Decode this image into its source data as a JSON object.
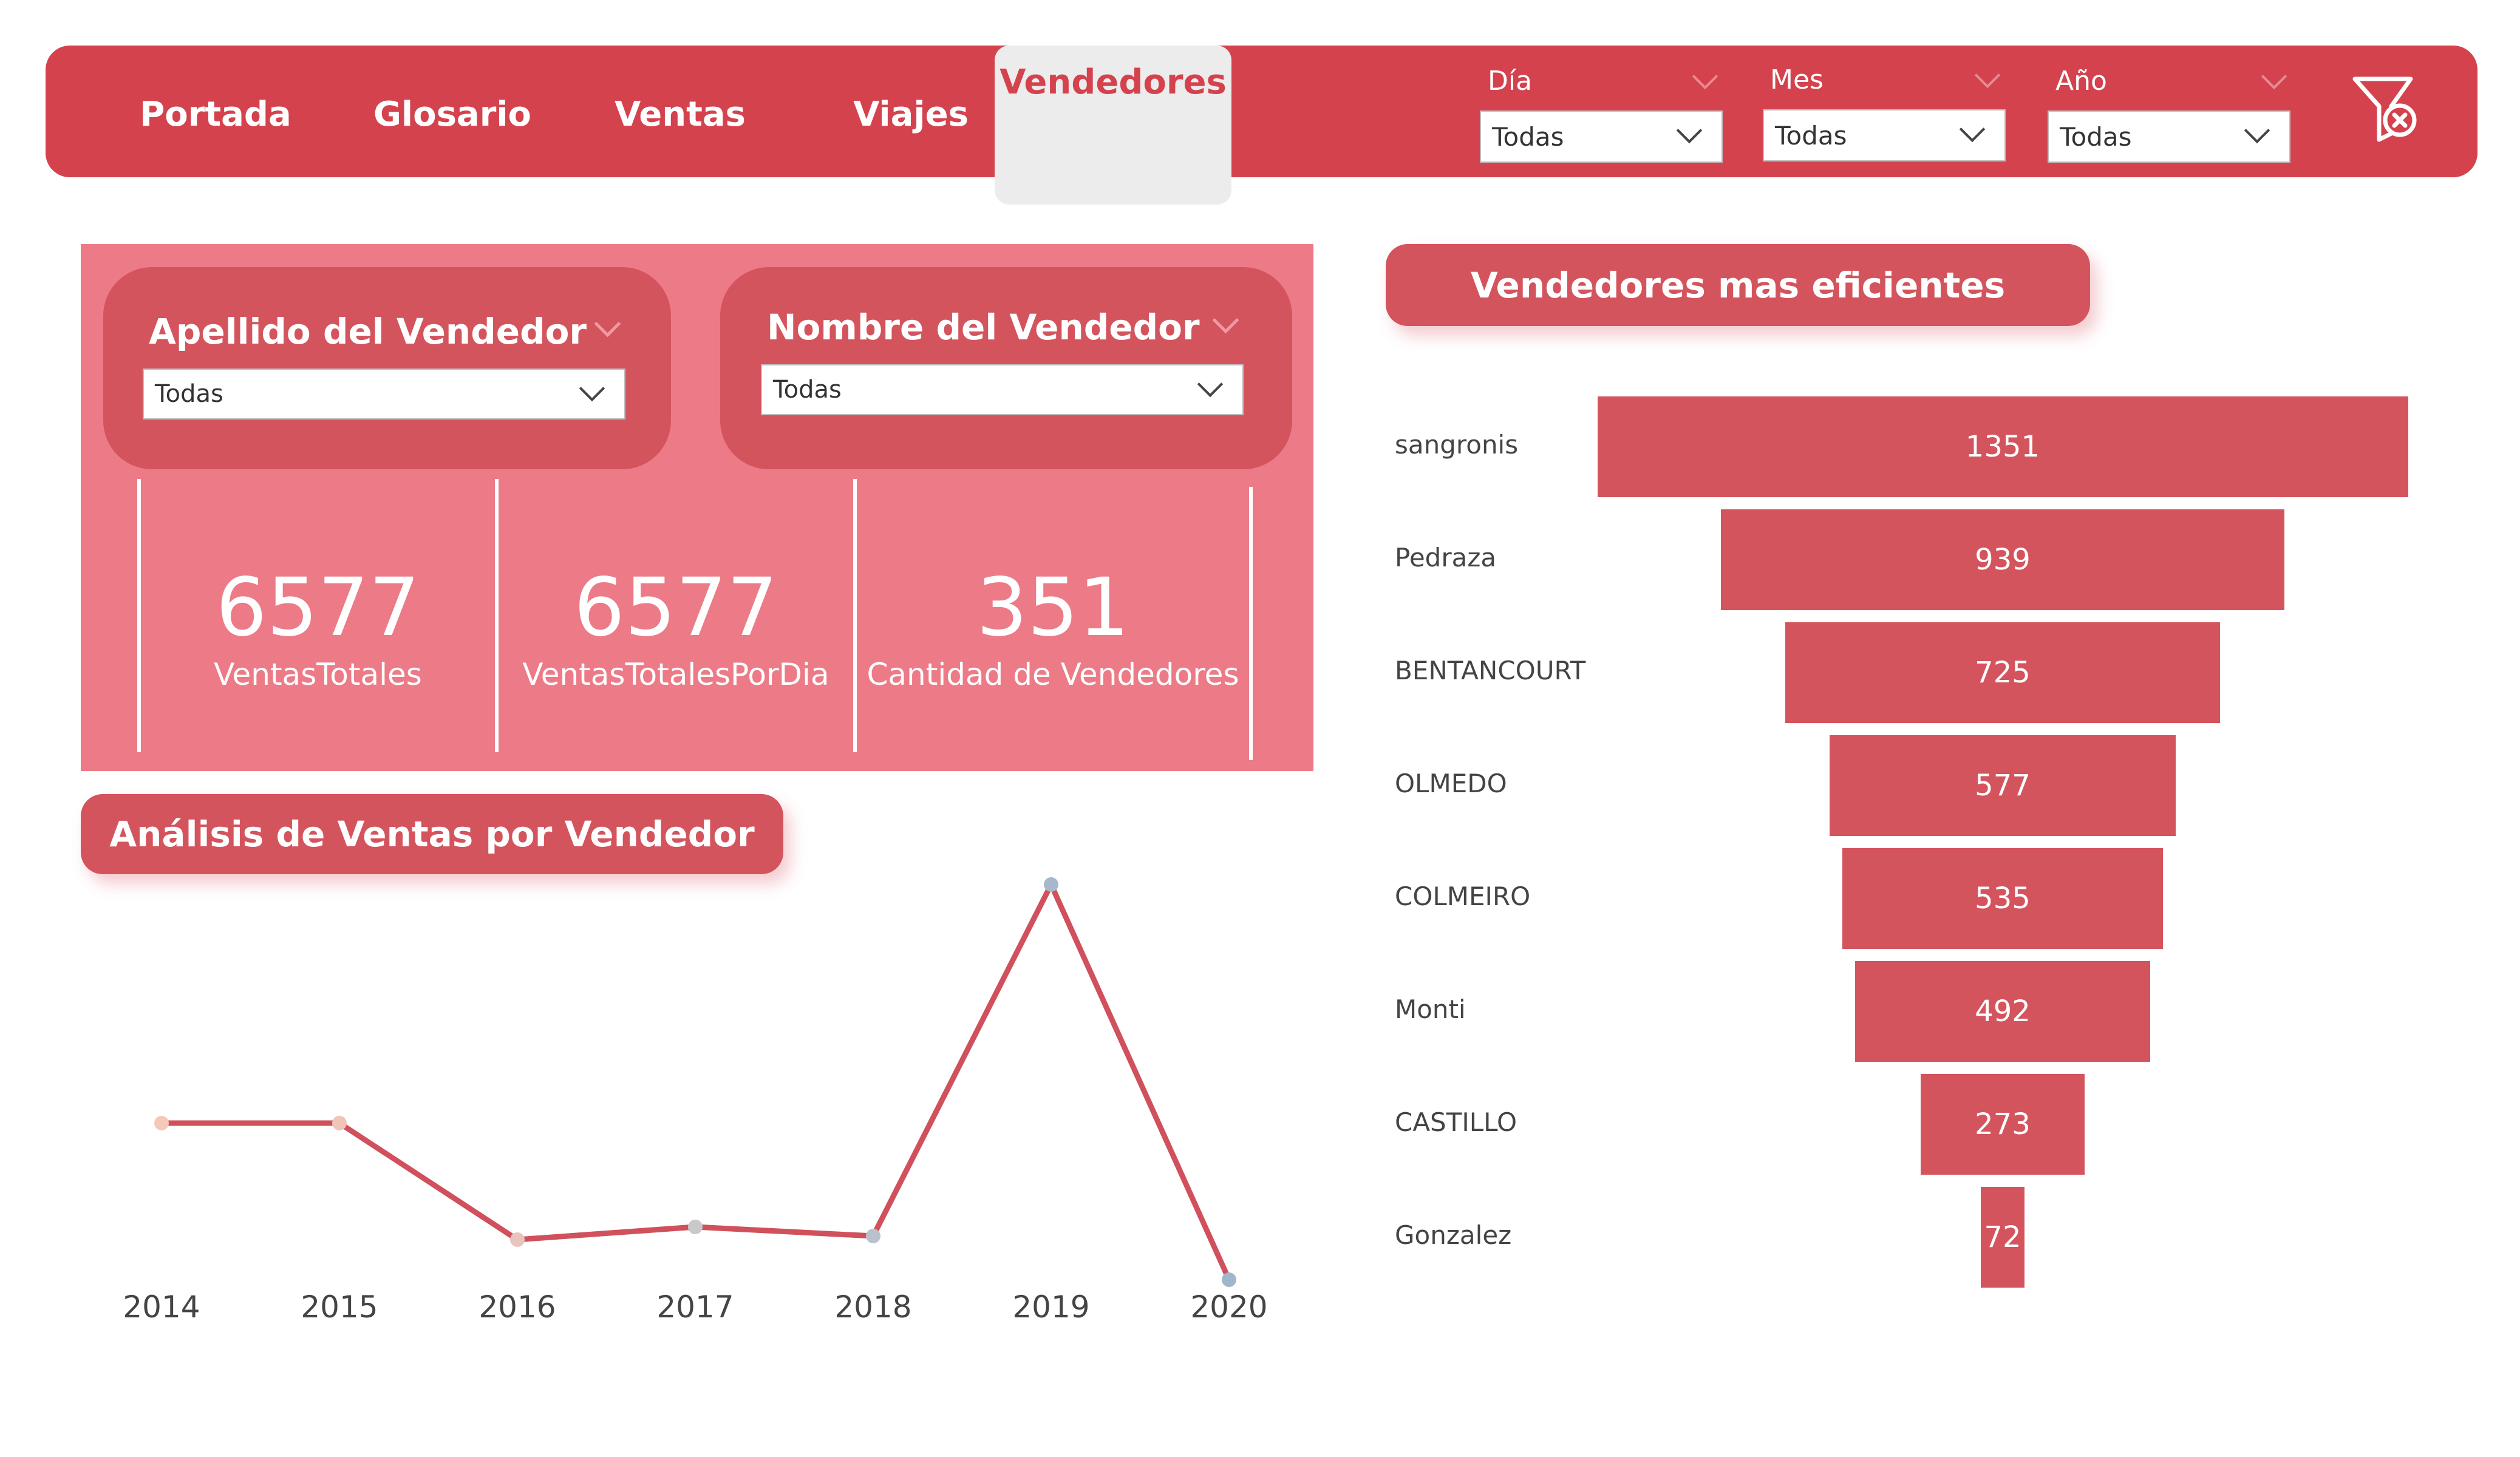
{
  "nav": {
    "tabs": [
      {
        "label": "Portada"
      },
      {
        "label": "Glosario"
      },
      {
        "label": "Ventas"
      },
      {
        "label": "Viajes"
      },
      {
        "label": "Vendedores"
      }
    ],
    "active_tab": "Vendedores"
  },
  "filters": {
    "dia": {
      "label": "Día",
      "value": "Todas"
    },
    "mes": {
      "label": "Mes",
      "value": "Todas"
    },
    "anio": {
      "label": "Año",
      "value": "Todas"
    }
  },
  "slicers": {
    "apellido": {
      "label": "Apellido del Vendedor",
      "value": "Todas"
    },
    "nombre": {
      "label": "Nombre del Vendedor",
      "value": "Todas"
    }
  },
  "kpis": [
    {
      "value": "6577",
      "label": "VentasTotales"
    },
    {
      "value": "6577",
      "label": "VentasTotalesPorDia"
    },
    {
      "value": "351",
      "label": "Cantidad de Vendedores"
    }
  ],
  "line_section": {
    "title": "Análisis de Ventas por Vendedor"
  },
  "funnel_section": {
    "title": "Vendedores mas eficientes"
  },
  "colors": {
    "brand": "#d4424e",
    "panel": "#ec7b87",
    "bar": "#d4545e",
    "line": "#d0505c"
  },
  "chart_data": [
    {
      "type": "line",
      "x": [
        "2014",
        "2015",
        "2016",
        "2017",
        "2018",
        "2019",
        "2020"
      ],
      "series": [
        {
          "values": [
            1000,
            1000,
            680,
            715,
            690,
            1655,
            570
          ]
        }
      ],
      "point_colors": [
        "#f5c8b8",
        "#f0c4b6",
        "#e8c4bc",
        "#c9c9c9",
        "#b9c2cc",
        "#a8b8cc",
        "#a0b6cc"
      ],
      "ylim": [
        400,
        1800
      ],
      "title": "",
      "xlabel": "",
      "ylabel": ""
    },
    {
      "type": "bar",
      "subtype": "funnel",
      "categories": [
        "sangronis",
        "Pedraza",
        "BENTANCOURT",
        "OLMEDO",
        "COLMEIRO",
        "Monti",
        "CASTILLO",
        "Gonzalez"
      ],
      "values": [
        1351,
        939,
        725,
        577,
        535,
        492,
        273,
        72
      ],
      "title": ""
    }
  ]
}
